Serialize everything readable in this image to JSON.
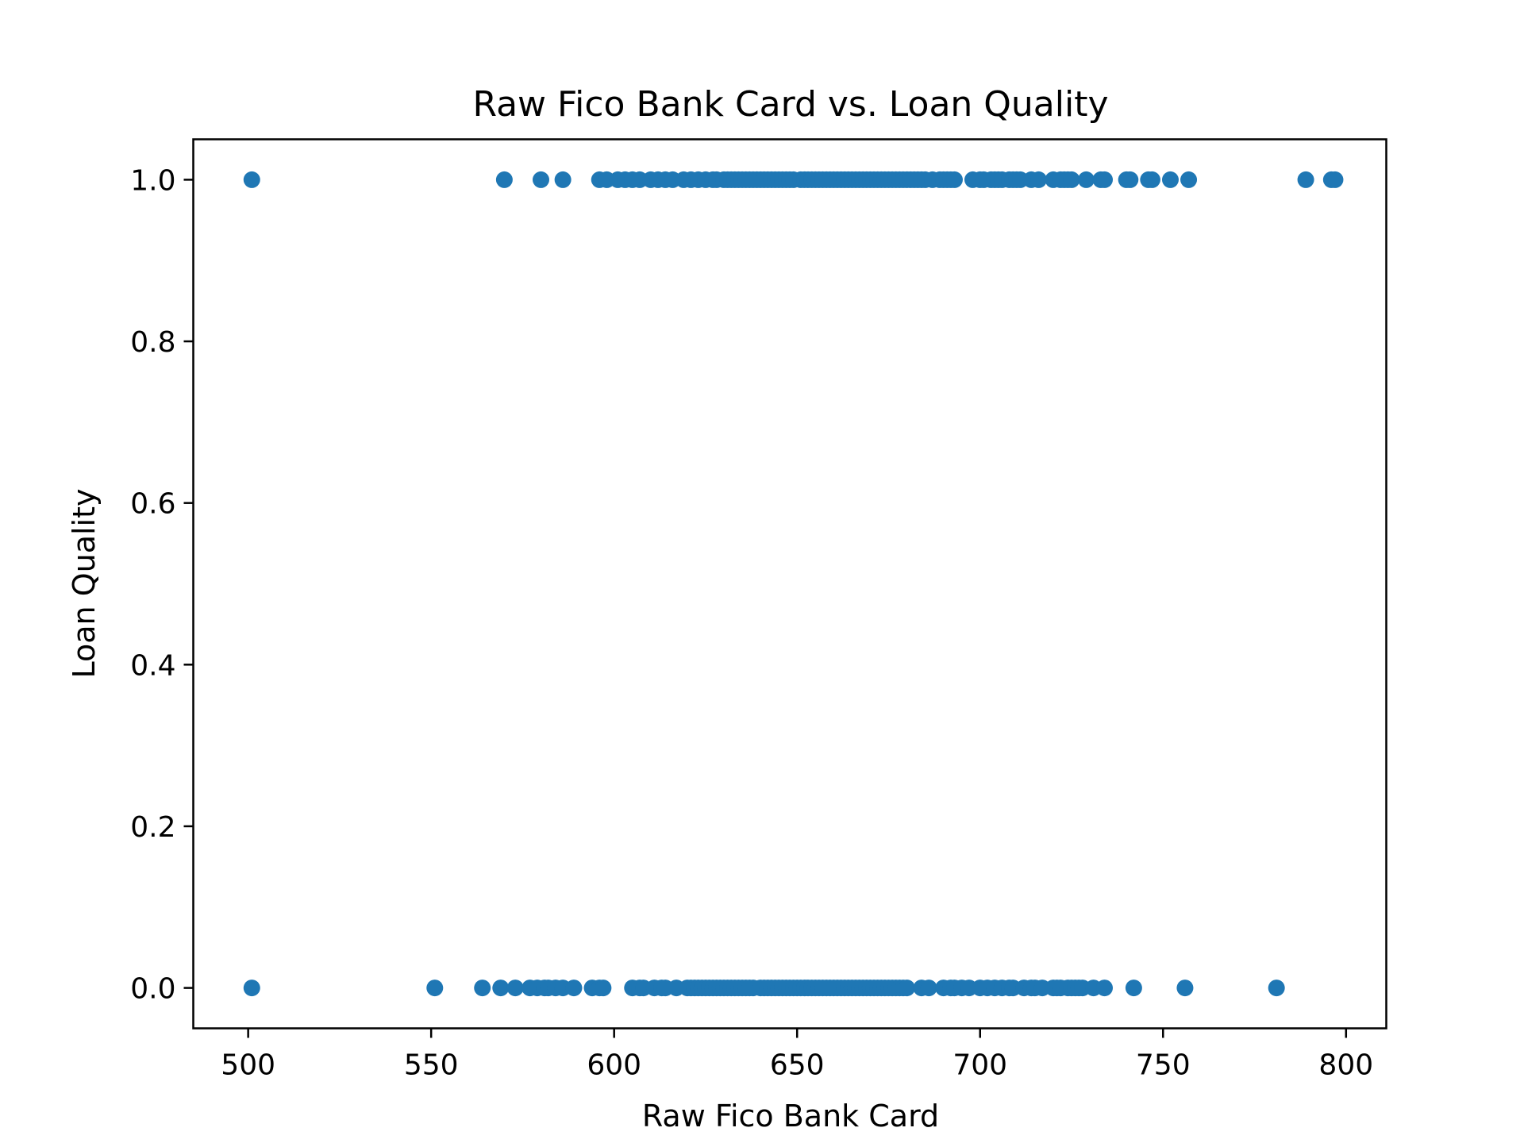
{
  "chart_data": {
    "type": "scatter",
    "title": "Raw Fico Bank Card vs. Loan Quality",
    "xlabel": "Raw Fico Bank Card",
    "ylabel": "Loan Quality",
    "xlim": [
      485,
      811
    ],
    "ylim": [
      -0.05,
      1.05
    ],
    "xticks": [
      500,
      550,
      600,
      650,
      700,
      750,
      800
    ],
    "xtick_labels": [
      "500",
      "550",
      "600",
      "650",
      "700",
      "750",
      "800"
    ],
    "yticks": [
      0.0,
      0.2,
      0.4,
      0.6,
      0.8,
      1.0
    ],
    "ytick_labels": [
      "0.0",
      "0.2",
      "0.4",
      "0.6",
      "0.8",
      "1.0"
    ],
    "grid": false,
    "marker_color": "#1f77b4",
    "series": [
      {
        "y_value": 1.0,
        "x": [
          501,
          570,
          580,
          586,
          596,
          598,
          601,
          603,
          605,
          607,
          610,
          612,
          614,
          616,
          619,
          621,
          623,
          625,
          627,
          628,
          630,
          631,
          632,
          633,
          634,
          635,
          636,
          637,
          638,
          639,
          640,
          641,
          642,
          643,
          644,
          645,
          646,
          647,
          648,
          649,
          651,
          652,
          653,
          654,
          655,
          656,
          657,
          658,
          659,
          660,
          661,
          662,
          663,
          664,
          665,
          666,
          667,
          668,
          669,
          670,
          671,
          672,
          673,
          674,
          675,
          676,
          677,
          678,
          679,
          680,
          681,
          682,
          683,
          684,
          685,
          687,
          689,
          690,
          691,
          692,
          693,
          698,
          700,
          701,
          703,
          704,
          705,
          706,
          708,
          709,
          710,
          711,
          714,
          716,
          720,
          722,
          723,
          724,
          725,
          729,
          733,
          734,
          740,
          741,
          746,
          747,
          752,
          757,
          789,
          796,
          797
        ]
      },
      {
        "y_value": 0.0,
        "x": [
          501,
          551,
          564,
          569,
          573,
          577,
          579,
          581,
          582,
          584,
          586,
          589,
          594,
          596,
          597,
          605,
          607,
          608,
          611,
          613,
          614,
          617,
          620,
          621,
          622,
          623,
          624,
          625,
          626,
          627,
          628,
          629,
          630,
          631,
          632,
          633,
          634,
          635,
          636,
          637,
          638,
          640,
          641,
          642,
          643,
          644,
          645,
          646,
          647,
          648,
          649,
          650,
          651,
          652,
          653,
          654,
          655,
          656,
          657,
          658,
          659,
          660,
          661,
          662,
          663,
          664,
          665,
          666,
          667,
          668,
          669,
          670,
          671,
          672,
          673,
          674,
          675,
          676,
          677,
          678,
          679,
          680,
          684,
          686,
          690,
          692,
          693,
          695,
          697,
          700,
          702,
          704,
          706,
          708,
          709,
          712,
          714,
          715,
          717,
          720,
          721,
          722,
          724,
          725,
          726,
          727,
          728,
          731,
          734,
          742,
          756,
          781
        ]
      }
    ]
  }
}
